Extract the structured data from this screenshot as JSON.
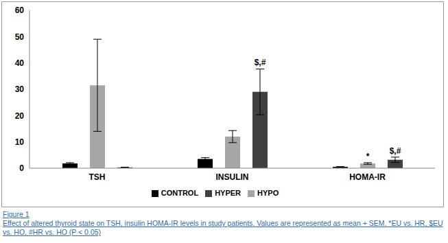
{
  "chart_data": {
    "type": "bar",
    "categories": [
      "TSH",
      "INSULIN",
      "HOMA-IR"
    ],
    "series": [
      {
        "name": "CONTROL",
        "color": "#000000",
        "values": [
          1.8,
          3.5,
          0.5
        ],
        "errors": [
          0.3,
          0.5,
          0.1
        ]
      },
      {
        "name": "HYPO",
        "color": "#a6a6a6",
        "values": [
          31.5,
          12,
          1.8
        ],
        "errors": [
          17.5,
          2.3,
          0.3
        ]
      },
      {
        "name": "HYPER",
        "color": "#404040",
        "values": [
          0.3,
          29,
          3.2
        ],
        "errors": [
          0.1,
          8.7,
          1.0
        ]
      }
    ],
    "ylim": [
      0,
      60
    ],
    "yticks": [
      0,
      10,
      20,
      30,
      40,
      50,
      60
    ],
    "grid": false,
    "legend": "bottom",
    "annotations": [
      {
        "text": "$,#",
        "category": "INSULIN",
        "series": "HYPER"
      },
      {
        "text": "*",
        "category": "HOMA-IR",
        "series": "HYPO"
      },
      {
        "text": "$,#",
        "category": "HOMA-IR",
        "series": "HYPER"
      }
    ]
  },
  "caption": {
    "label": "Figure 1",
    "text": "Effect of altered thyroid state on TSH, insulin HOMA-IR levels in study patients. Values are represented as mean + SEM. *EU vs. HR, $EU vs. HO, #HR vs. HO (P < 0.05)"
  }
}
